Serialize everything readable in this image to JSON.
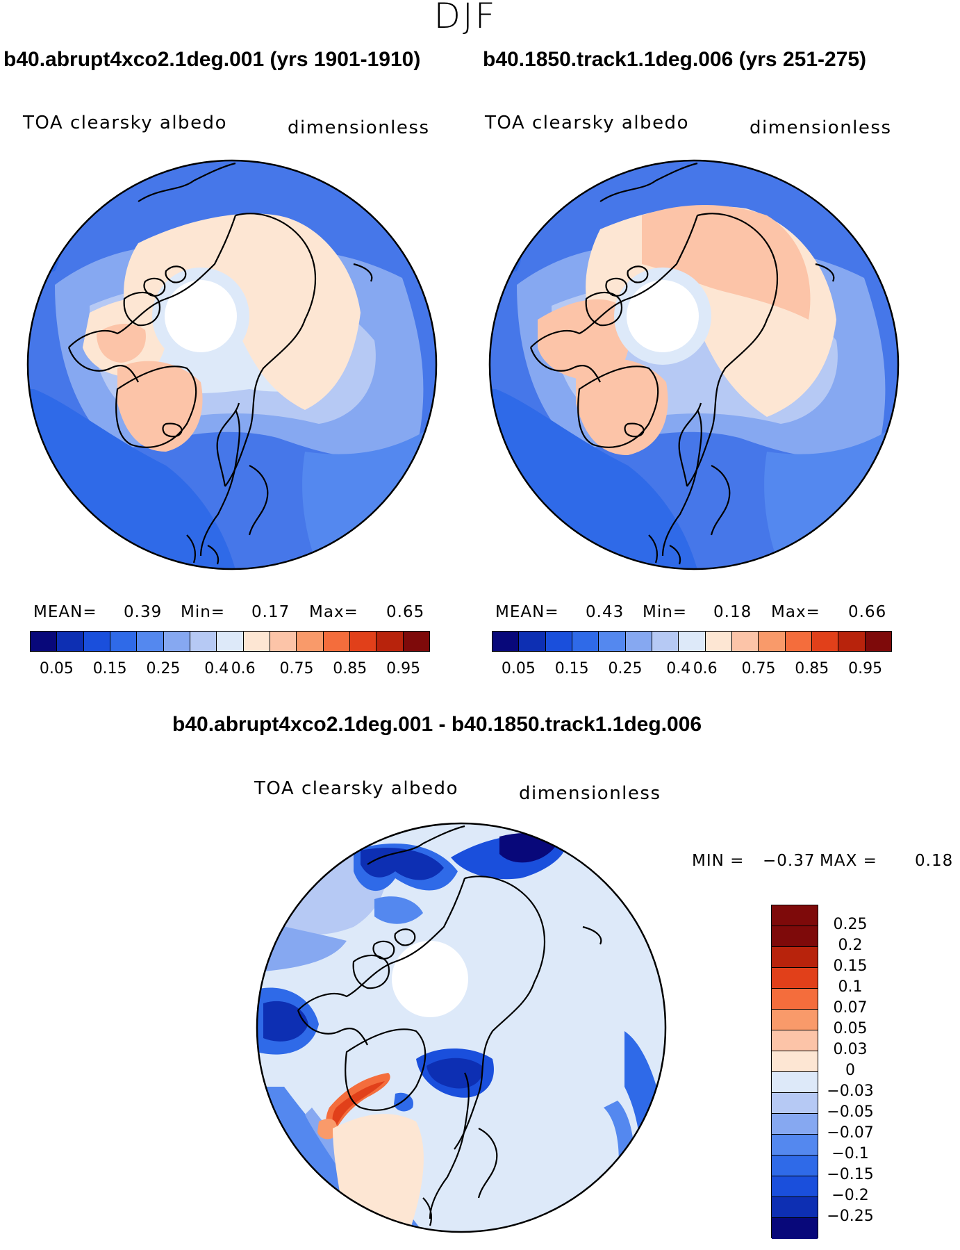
{
  "season": "DJF",
  "panels": {
    "left": {
      "title": "b40.abrupt4xco2.1deg.001 (yrs 1901-1910)",
      "variable": "TOA clearsky albedo",
      "units": "dimensionless",
      "mean_label": "MEAN=",
      "mean": "0.39",
      "min_label": "Min=",
      "min": "0.17",
      "max_label": "Max=",
      "max": "0.65"
    },
    "right": {
      "title": "b40.1850.track1.1deg.006 (yrs 251-275)",
      "variable": "TOA clearsky albedo",
      "units": "dimensionless",
      "mean_label": "MEAN=",
      "mean": "0.43",
      "min_label": "Min=",
      "min": "0.18",
      "max_label": "Max=",
      "max": "0.66"
    },
    "diff": {
      "title": "b40.abrupt4xco2.1deg.001 - b40.1850.track1.1deg.006",
      "variable": "TOA clearsky albedo",
      "units": "dimensionless",
      "min_label": "MIN =",
      "min": "-0.37",
      "max_label": "MAX =",
      "max": "0.18"
    }
  },
  "chart_data": [
    {
      "type": "heatmap",
      "projection": "north-polar-stereographic",
      "title": "b40.abrupt4xco2.1deg.001 (yrs 1901-1910)",
      "variable": "TOA clearsky albedo",
      "units": "dimensionless",
      "mean": 0.39,
      "min": 0.17,
      "max": 0.65,
      "colorbar": {
        "tick_labels": [
          "0.05",
          "0.15",
          "0.25",
          "0.4",
          "0.6",
          "0.75",
          "0.85",
          "0.95"
        ],
        "colors": [
          "#08087a",
          "#0d2fb3",
          "#1a4fdc",
          "#2f6ae8",
          "#5488ef",
          "#86a8f1",
          "#b6c9f4",
          "#dde9f9",
          "#fde6d3",
          "#fcc4a8",
          "#f99a6a",
          "#f46d3c",
          "#e1401a",
          "#b8230c",
          "#7e0a0a"
        ]
      },
      "notable_regions": [
        "Greenland and North America high albedo (~0.6)",
        "Open ocean low albedo (~0.15-0.25)"
      ]
    },
    {
      "type": "heatmap",
      "projection": "north-polar-stereographic",
      "title": "b40.1850.track1.1deg.006 (yrs 251-275)",
      "variable": "TOA clearsky albedo",
      "units": "dimensionless",
      "mean": 0.43,
      "min": 0.18,
      "max": 0.66,
      "colorbar": {
        "tick_labels": [
          "0.05",
          "0.15",
          "0.25",
          "0.4",
          "0.6",
          "0.75",
          "0.85",
          "0.95"
        ],
        "colors": [
          "#08087a",
          "#0d2fb3",
          "#1a4fdc",
          "#2f6ae8",
          "#5488ef",
          "#86a8f1",
          "#b6c9f4",
          "#dde9f9",
          "#fde6d3",
          "#fcc4a8",
          "#f99a6a",
          "#f46d3c",
          "#e1401a",
          "#b8230c",
          "#7e0a0a"
        ]
      },
      "notable_regions": [
        "Greenland and North America high albedo (~0.6-0.65)",
        "Open ocean low albedo (~0.15-0.25)"
      ]
    },
    {
      "type": "heatmap",
      "projection": "north-polar-stereographic",
      "title": "b40.abrupt4xco2.1deg.001 - b40.1850.track1.1deg.006",
      "variable": "TOA clearsky albedo",
      "units": "dimensionless",
      "min": -0.37,
      "max": 0.18,
      "colorbar": {
        "tick_labels": [
          "0.25",
          "0.2",
          "0.15",
          "0.1",
          "0.07",
          "0.05",
          "0.03",
          "0",
          "-0.03",
          "-0.05",
          "-0.07",
          "-0.1",
          "-0.15",
          "-0.2",
          "-0.25"
        ],
        "colors": [
          "#7e0a0a",
          "#b8230c",
          "#e1401a",
          "#f46d3c",
          "#f99a6a",
          "#fcc4a8",
          "#fde6d3",
          "#dde9f9",
          "#b6c9f4",
          "#86a8f1",
          "#5488ef",
          "#2f6ae8",
          "#1a4fdc",
          "#0d2fb3",
          "#08087a"
        ]
      },
      "notable_regions": [
        "Large negative change over northern Eurasia coasts (~-0.25)",
        "Positive change in Labrador Sea (~0.15)"
      ]
    }
  ]
}
